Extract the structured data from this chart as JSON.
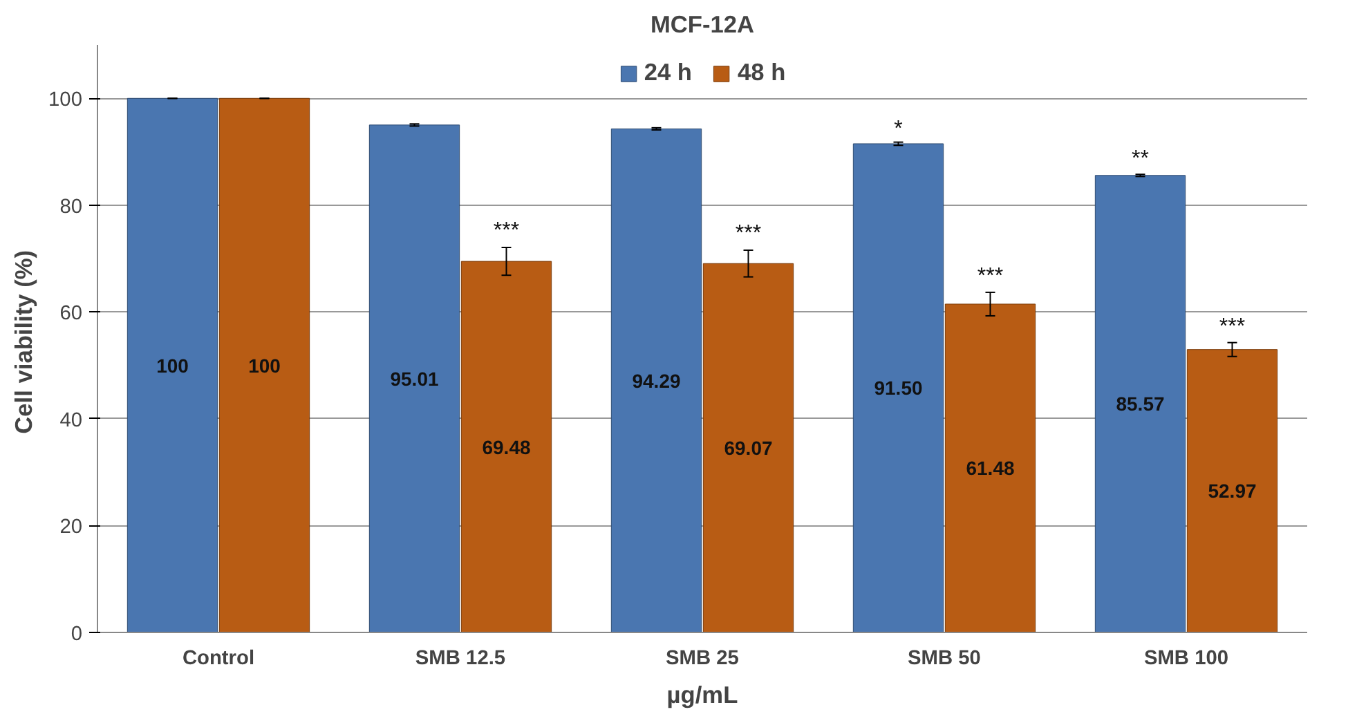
{
  "chart_data": {
    "type": "bar",
    "title": "MCF-12A",
    "xlabel": "µg/mL",
    "ylabel": "Cell viability  (%)",
    "categories": [
      "Control",
      "SMB 12.5",
      "SMB 25",
      "SMB 50",
      "SMB 100"
    ],
    "series": [
      {
        "name": "24 h",
        "color": "#4a76b0",
        "values": [
          100,
          95.01,
          94.29,
          91.5,
          85.57
        ],
        "value_labels": [
          "100",
          "95.01",
          "94.29",
          "91.50",
          "85.57"
        ],
        "errors": [
          0,
          0.2,
          0.2,
          0.3,
          0.2
        ]
      },
      {
        "name": "48 h",
        "color": "#b85c14",
        "values": [
          100,
          69.48,
          69.07,
          61.48,
          52.97
        ],
        "value_labels": [
          "100",
          "69.48",
          "69.07",
          "61.48",
          "52.97"
        ],
        "errors": [
          0,
          2.6,
          2.5,
          2.2,
          1.3
        ]
      }
    ],
    "ylim": [
      0,
      110
    ],
    "yticks": [
      0,
      20,
      40,
      60,
      80,
      100
    ],
    "grid": "y",
    "legend": "top",
    "annotations": [
      {
        "text": "***",
        "x": "SMB 12.5",
        "y": 73
      },
      {
        "text": "***",
        "x": "SMB 25",
        "y": 72.5
      },
      {
        "text": "*",
        "x": "SMB 50",
        "y": 92
      },
      {
        "text": "***",
        "x": "SMB 50",
        "y": 64.5
      },
      {
        "text": "**",
        "x": "SMB 100",
        "y": 86.5
      },
      {
        "text": "***",
        "x": "SMB 100",
        "y": 55
      }
    ]
  }
}
